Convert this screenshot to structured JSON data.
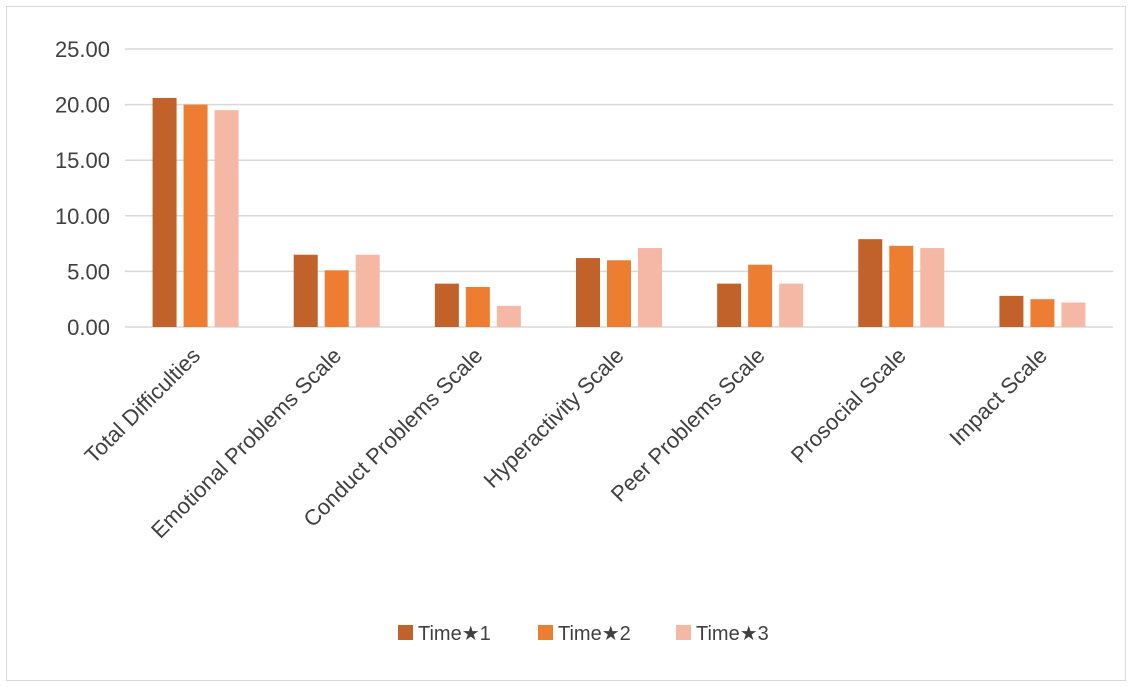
{
  "chart_data": {
    "type": "bar",
    "categories": [
      "Total Difficulties",
      "Emotional Problems Scale",
      "Conduct Problems Scale",
      "Hyperactivity Scale",
      "Peer Problems Scale",
      "Prosocial Scale",
      "Impact Scale"
    ],
    "series": [
      {
        "name": "Time★1",
        "color": "#c0622a",
        "values": [
          20.6,
          6.5,
          3.9,
          6.2,
          3.9,
          7.9,
          2.8
        ]
      },
      {
        "name": "Time★2",
        "color": "#ed7d31",
        "values": [
          20.0,
          5.1,
          3.6,
          6.0,
          5.6,
          7.3,
          2.5
        ]
      },
      {
        "name": "Time★3",
        "color": "#f4b8a4",
        "values": [
          19.5,
          6.5,
          1.9,
          7.1,
          3.9,
          7.1,
          2.2
        ]
      }
    ],
    "yticks": [
      "0.00",
      "5.00",
      "10.00",
      "15.00",
      "20.00",
      "25.00"
    ],
    "ylim": [
      0,
      25
    ],
    "grid": true,
    "legend": "bottom",
    "title": "",
    "xlabel": "",
    "ylabel": ""
  }
}
